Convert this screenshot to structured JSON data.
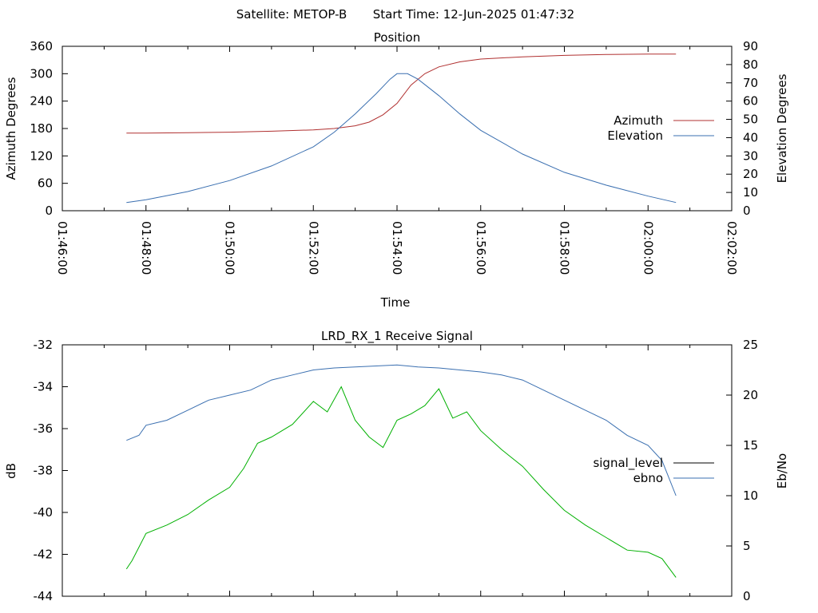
{
  "header": {
    "satellite_label": "Satellite: METOP-B",
    "start_time_label": "Start Time: 12-Jun-2025 01:47:32"
  },
  "colors": {
    "azimuth": "#b03030",
    "elevation": "#3a6fb0",
    "signal_level": "#00b000",
    "signal_level_legend": "#000000",
    "ebno": "#3a6fb0"
  },
  "chart_data": [
    {
      "type": "line",
      "title": "Position",
      "xlabel": "Time",
      "ylabel": "Azimuth Degrees",
      "y2label": "Elevation Degrees",
      "x_ticks": [
        "01:46:00",
        "01:48:00",
        "01:50:00",
        "01:52:00",
        "01:54:00",
        "01:56:00",
        "01:58:00",
        "02:00:00",
        "02:02:00"
      ],
      "xlim": [
        "01:46:00",
        "02:02:00"
      ],
      "ylim": [
        0,
        360
      ],
      "y_ticks": [
        0,
        60,
        120,
        180,
        240,
        300,
        360
      ],
      "y2lim": [
        0,
        90
      ],
      "y2_ticks": [
        0,
        10,
        20,
        30,
        40,
        50,
        60,
        70,
        80,
        90
      ],
      "legend_position": "right",
      "series": [
        {
          "name": "Azimuth",
          "axis": "left",
          "x": [
            "01:47:32",
            "01:48:00",
            "01:49:00",
            "01:50:00",
            "01:51:00",
            "01:52:00",
            "01:52:30",
            "01:53:00",
            "01:53:20",
            "01:53:40",
            "01:54:00",
            "01:54:20",
            "01:54:40",
            "01:55:00",
            "01:55:30",
            "01:56:00",
            "01:57:00",
            "01:58:00",
            "01:59:00",
            "02:00:00",
            "02:00:40"
          ],
          "values": [
            170,
            170,
            171,
            172,
            174,
            177,
            180,
            186,
            194,
            210,
            235,
            275,
            300,
            315,
            326,
            332,
            337,
            340,
            342,
            343,
            343
          ]
        },
        {
          "name": "Elevation",
          "axis": "right",
          "x": [
            "01:47:32",
            "01:48:00",
            "01:49:00",
            "01:50:00",
            "01:51:00",
            "01:52:00",
            "01:52:30",
            "01:53:00",
            "01:53:30",
            "01:53:50",
            "01:54:00",
            "01:54:15",
            "01:54:30",
            "01:55:00",
            "01:55:30",
            "01:56:00",
            "01:57:00",
            "01:58:00",
            "01:59:00",
            "02:00:00",
            "02:00:40"
          ],
          "values": [
            4.5,
            6,
            10.5,
            16.5,
            24.5,
            35,
            43,
            53,
            64,
            72,
            75,
            75,
            72,
            63,
            53,
            44,
            31,
            21,
            14,
            8,
            4.5
          ]
        }
      ]
    },
    {
      "type": "line",
      "title": "LRD_RX_1 Receive Signal",
      "ylabel": "dB",
      "y2label": "Eb/No",
      "xlim": [
        "01:46:00",
        "02:02:00"
      ],
      "ylim": [
        -44,
        -32
      ],
      "y_ticks": [
        -44,
        -42,
        -40,
        -38,
        -36,
        -34,
        -32
      ],
      "y2lim": [
        0,
        25
      ],
      "y2_ticks": [
        0,
        5,
        10,
        15,
        20,
        25
      ],
      "legend_position": "right",
      "series": [
        {
          "name": "signal_level",
          "axis": "left",
          "x": [
            "01:47:32",
            "01:47:40",
            "01:48:00",
            "01:48:30",
            "01:49:00",
            "01:49:30",
            "01:50:00",
            "01:50:20",
            "01:50:40",
            "01:51:00",
            "01:51:30",
            "01:52:00",
            "01:52:20",
            "01:52:40",
            "01:53:00",
            "01:53:20",
            "01:53:40",
            "01:54:00",
            "01:54:20",
            "01:54:40",
            "01:55:00",
            "01:55:20",
            "01:55:40",
            "01:56:00",
            "01:56:30",
            "01:57:00",
            "01:57:30",
            "01:58:00",
            "01:58:30",
            "01:59:00",
            "01:59:30",
            "02:00:00",
            "02:00:20",
            "02:00:40"
          ],
          "values": [
            -42.7,
            -42.3,
            -41.0,
            -40.6,
            -40.1,
            -39.4,
            -38.8,
            -37.9,
            -36.7,
            -36.4,
            -35.8,
            -34.7,
            -35.2,
            -34.0,
            -35.6,
            -36.4,
            -36.9,
            -35.6,
            -35.3,
            -34.9,
            -34.1,
            -35.5,
            -35.2,
            -36.1,
            -37.0,
            -37.8,
            -38.9,
            -39.9,
            -40.6,
            -41.2,
            -41.8,
            -41.9,
            -42.2,
            -43.1
          ]
        },
        {
          "name": "ebno",
          "axis": "right",
          "x": [
            "01:47:32",
            "01:47:50",
            "01:48:00",
            "01:48:30",
            "01:49:00",
            "01:49:30",
            "01:50:00",
            "01:50:30",
            "01:51:00",
            "01:51:30",
            "01:52:00",
            "01:52:30",
            "01:53:00",
            "01:53:30",
            "01:54:00",
            "01:54:30",
            "01:55:00",
            "01:55:30",
            "01:56:00",
            "01:56:30",
            "01:57:00",
            "01:57:30",
            "01:58:00",
            "01:58:30",
            "01:59:00",
            "01:59:30",
            "02:00:00",
            "02:00:20",
            "02:00:40"
          ],
          "values": [
            15.5,
            16.0,
            17.0,
            17.5,
            18.5,
            19.5,
            20.0,
            20.5,
            21.5,
            22.0,
            22.5,
            22.7,
            22.8,
            22.9,
            23.0,
            22.8,
            22.7,
            22.5,
            22.3,
            22.0,
            21.5,
            20.5,
            19.5,
            18.5,
            17.5,
            16.0,
            15.0,
            13.5,
            10.0
          ]
        }
      ]
    }
  ]
}
